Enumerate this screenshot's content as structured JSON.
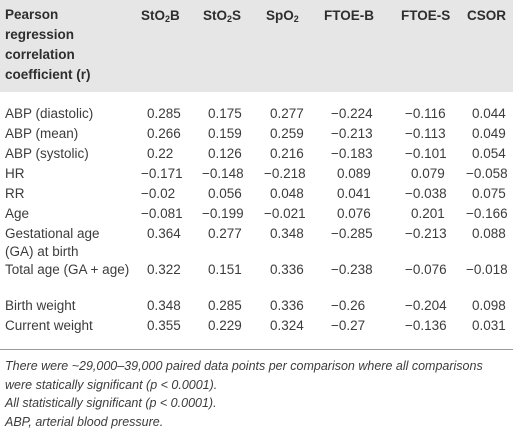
{
  "header": {
    "first_col": "Pearson regression correlation coefficient (r)",
    "first_col_lines": [
      "Pearson",
      "regression",
      "correlation",
      "coefficient (r)"
    ],
    "columns": [
      {
        "main": "StO",
        "sub": "2",
        "suffix": "B"
      },
      {
        "main": "StO",
        "sub": "2",
        "suffix": "S"
      },
      {
        "main": "SpO",
        "sub": "2",
        "suffix": ""
      },
      {
        "main": "FTOE-B",
        "sub": "",
        "suffix": ""
      },
      {
        "main": "FTOE-S",
        "sub": "",
        "suffix": ""
      },
      {
        "main": "CSOR",
        "sub": "",
        "suffix": ""
      }
    ]
  },
  "rows": [
    {
      "label": "ABP (diastolic)",
      "values": [
        "0.285",
        "0.175",
        "0.277",
        "−0.224",
        "−0.116",
        "0.044"
      ]
    },
    {
      "label": "ABP (mean)",
      "values": [
        "0.266",
        "0.159",
        "0.259",
        "−0.213",
        "−0.113",
        "0.049"
      ]
    },
    {
      "label": "ABP (systolic)",
      "values": [
        "0.22",
        "0.126",
        "0.216",
        "−0.183",
        "−0.101",
        "0.054"
      ]
    },
    {
      "label": "HR",
      "values": [
        "−0.171",
        "−0.148",
        "−0.218",
        "0.089",
        "0.079",
        "−0.058"
      ]
    },
    {
      "label": "RR",
      "values": [
        "−0.02",
        "0.056",
        "0.048",
        "0.041",
        "−0.038",
        "0.075"
      ]
    },
    {
      "label": "Age",
      "values": [
        "−0.081",
        "−0.199",
        "−0.021",
        "0.076",
        "0.201",
        "−0.166"
      ]
    },
    {
      "label": "Gestational age (GA) at birth",
      "values": [
        "0.364",
        "0.277",
        "0.348",
        "−0.285",
        "−0.213",
        "0.088"
      ]
    },
    {
      "label": "Total age (GA + age)",
      "values": [
        "0.322",
        "0.151",
        "0.336",
        "−0.238",
        "−0.076",
        "−0.018"
      ]
    },
    {
      "label": "Birth weight",
      "values": [
        "0.348",
        "0.285",
        "0.336",
        "−0.26",
        "−0.204",
        "0.098"
      ]
    },
    {
      "label": "Current weight",
      "values": [
        "0.355",
        "0.229",
        "0.324",
        "−0.27",
        "−0.136",
        "0.031"
      ]
    }
  ],
  "footnotes": [
    "There were ~29,000–39,000 paired data points per comparison where all comparisons were statically significant (p < 0.0001).",
    "All statistically significant (p < 0.0001).",
    "ABP, arterial blood pressure."
  ]
}
